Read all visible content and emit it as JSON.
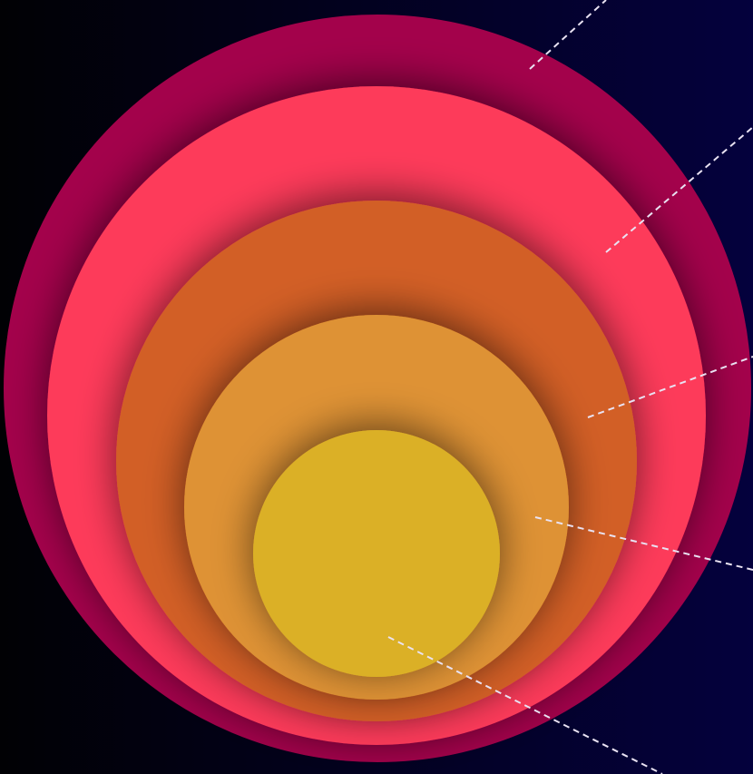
{
  "background": {
    "gradient_left": "#010104",
    "gradient_right": "#04013d"
  },
  "layers": [
    {
      "id": "layer-1",
      "color": "#a3024b",
      "shade": "#5a0030"
    },
    {
      "id": "layer-2",
      "color": "#fd3b5a",
      "shade": "#8a1f3c"
    },
    {
      "id": "layer-3",
      "color": "#d25f26",
      "shade": "#7a3617"
    },
    {
      "id": "layer-4",
      "color": "#de9234",
      "shade": "#8c5a22"
    },
    {
      "id": "layer-5",
      "color": "#dbb025",
      "shade": "#8f7318"
    }
  ],
  "leader_line": {
    "color": "#e9e2f2",
    "style": "dashed"
  }
}
